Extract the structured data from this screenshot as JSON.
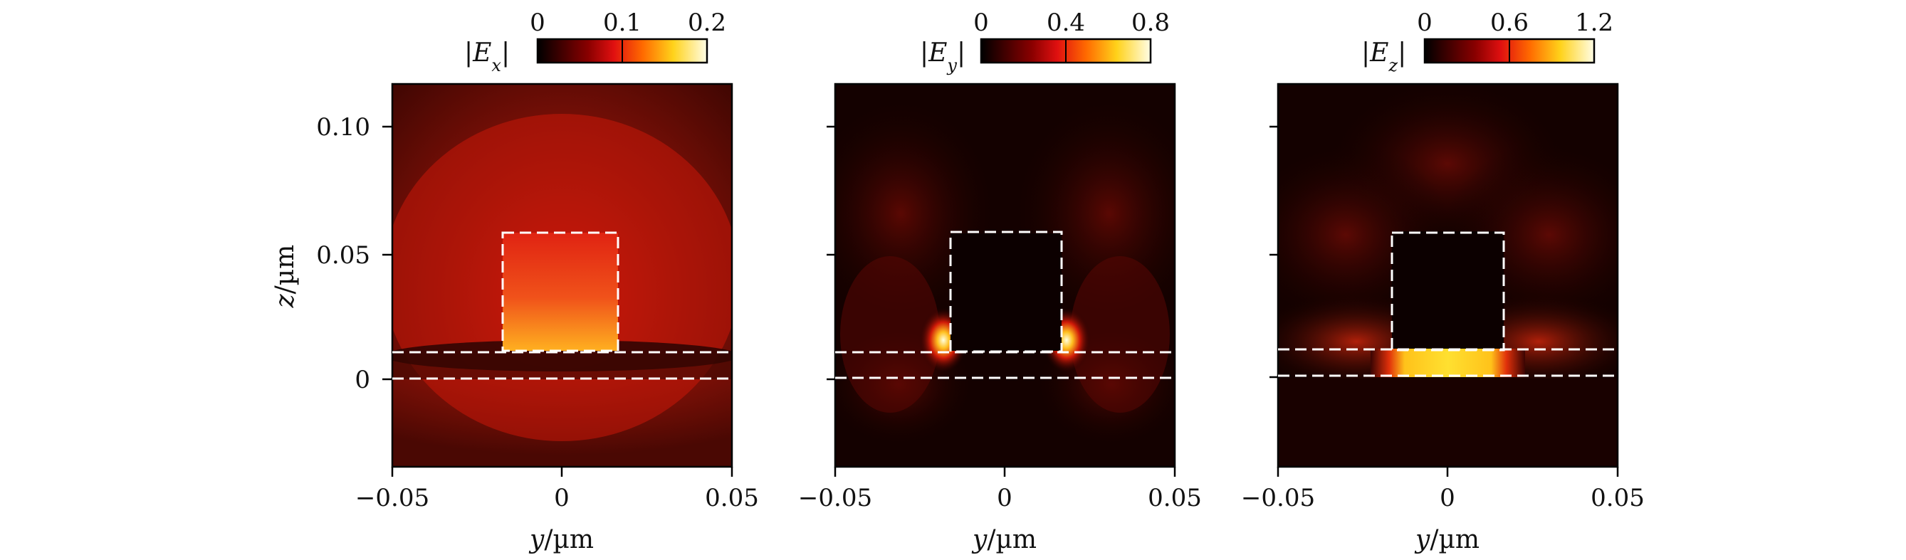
{
  "chart_data": [
    {
      "type": "heatmap",
      "field": "|E_x|",
      "colorbar": {
        "symbol": "E",
        "subscript": "x",
        "ticks": [
          0,
          0.1,
          0.2
        ],
        "tick_labels": [
          "0",
          "0.1",
          "0.2"
        ],
        "range": [
          0,
          0.2
        ]
      },
      "xlabel": {
        "var": "y",
        "unit": "/µm"
      },
      "ylabel": {
        "var": "z",
        "unit": "/µm"
      },
      "xlim": [
        -0.05,
        0.05
      ],
      "ylim": [
        -0.035,
        0.115
      ],
      "xticks": [
        -0.05,
        0,
        0.05
      ],
      "xtick_labels": [
        "−0.05",
        "0",
        "0.05"
      ],
      "yticks": [
        0,
        0.05,
        0.1
      ],
      "ytick_labels": [
        "0",
        "0.05",
        "0.10"
      ],
      "show_ytick_labels": true,
      "colormap": "hot",
      "structures": {
        "block": {
          "y": [
            -0.017,
            0.017
          ],
          "z": [
            0.011,
            0.058
          ]
        },
        "layer_lines_z": [
          0.0,
          0.01
        ]
      }
    },
    {
      "type": "heatmap",
      "field": "|E_y|",
      "colorbar": {
        "symbol": "E",
        "subscript": "y",
        "ticks": [
          0,
          0.4,
          0.8
        ],
        "tick_labels": [
          "0",
          "0.4",
          "0.8"
        ],
        "range": [
          0,
          0.8
        ]
      },
      "xlabel": {
        "var": "y",
        "unit": "/µm"
      },
      "ylabel": {
        "var": "",
        "unit": ""
      },
      "xlim": [
        -0.05,
        0.05
      ],
      "ylim": [
        -0.035,
        0.115
      ],
      "xticks": [
        -0.05,
        0,
        0.05
      ],
      "xtick_labels": [
        "−0.05",
        "0",
        "0.05"
      ],
      "yticks": [
        0,
        0.05,
        0.1
      ],
      "ytick_labels": [
        "",
        "",
        ""
      ],
      "show_ytick_labels": false,
      "colormap": "hot",
      "structures": {
        "block": {
          "y": [
            -0.017,
            0.017
          ],
          "z": [
            0.011,
            0.058
          ]
        },
        "layer_lines_z": [
          0.0,
          0.01
        ]
      }
    },
    {
      "type": "heatmap",
      "field": "|E_z|",
      "colorbar": {
        "symbol": "E",
        "subscript": "z",
        "ticks": [
          0,
          0.6,
          1.2
        ],
        "tick_labels": [
          "0",
          "0.6",
          "1.2"
        ],
        "range": [
          0,
          1.2
        ]
      },
      "xlabel": {
        "var": "y",
        "unit": "/µm"
      },
      "ylabel": {
        "var": "",
        "unit": ""
      },
      "xlim": [
        -0.05,
        0.05
      ],
      "ylim": [
        -0.035,
        0.115
      ],
      "xticks": [
        -0.05,
        0,
        0.05
      ],
      "xtick_labels": [
        "−0.05",
        "0",
        "0.05"
      ],
      "yticks": [
        0,
        0.05,
        0.1
      ],
      "ytick_labels": [
        "",
        "",
        ""
      ],
      "show_ytick_labels": false,
      "colormap": "hot",
      "structures": {
        "block": {
          "y": [
            -0.017,
            0.017
          ],
          "z": [
            0.011,
            0.058
          ]
        },
        "layer_lines_z": [
          0.0,
          0.01
        ]
      }
    }
  ]
}
